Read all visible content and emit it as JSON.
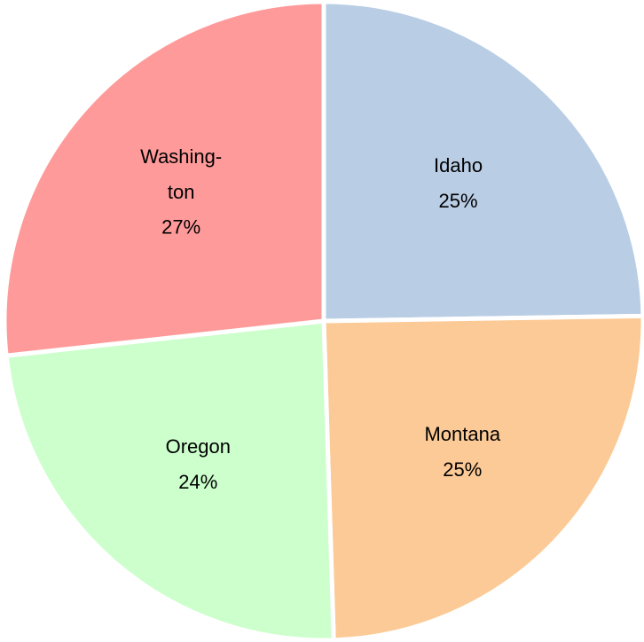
{
  "chart_data": {
    "type": "pie",
    "categories": [
      "Idaho",
      "Montana",
      "Oregon",
      "Washing-ton"
    ],
    "values": [
      25,
      25,
      24,
      27
    ],
    "value_labels": [
      "25%",
      "25%",
      "24%",
      "27%"
    ],
    "colors": [
      "#b9cde5",
      "#fcca96",
      "#ccffcc",
      "#ff9a9a"
    ]
  }
}
